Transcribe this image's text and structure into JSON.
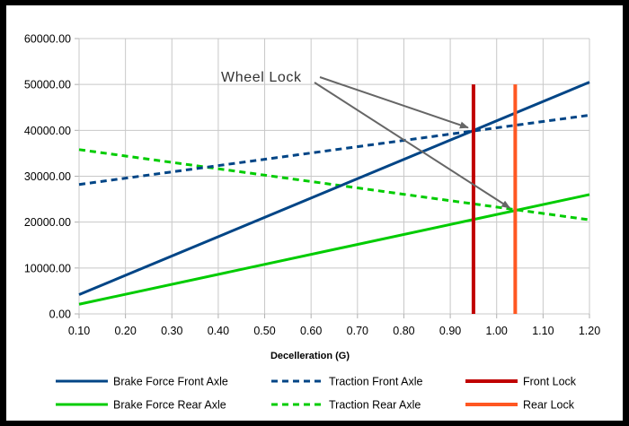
{
  "chart_data": {
    "type": "line",
    "title": "",
    "xlabel": "Decelleration (G)",
    "ylabel": "",
    "xlim": [
      0.1,
      1.2
    ],
    "ylim": [
      0,
      60000
    ],
    "x_ticks": [
      "0.10",
      "0.20",
      "0.30",
      "0.40",
      "0.50",
      "0.60",
      "0.70",
      "0.80",
      "0.90",
      "1.00",
      "1.10",
      "1.20"
    ],
    "y_ticks": [
      "0.00",
      "10000.00",
      "20000.00",
      "30000.00",
      "40000.00",
      "50000.00",
      "60000.00"
    ],
    "grid": true,
    "legend_position": "bottom",
    "series": [
      {
        "name": "Brake Force Front Axle",
        "color": "#004586",
        "style": "solid",
        "x": [
          0.1,
          1.2
        ],
        "y": [
          4200,
          50500
        ]
      },
      {
        "name": "Traction Front Axle",
        "color": "#004586",
        "style": "dashed",
        "x": [
          0.1,
          1.2
        ],
        "y": [
          28200,
          43300
        ]
      },
      {
        "name": "Front Lock",
        "color": "#c00000",
        "style": "vertical",
        "x": [
          0.95,
          0.95
        ],
        "y": [
          0,
          50000
        ]
      },
      {
        "name": "Brake Force Rear Axle",
        "color": "#00cc00",
        "style": "solid",
        "x": [
          0.1,
          1.2
        ],
        "y": [
          2100,
          26000
        ]
      },
      {
        "name": "Traction Rear Axle",
        "color": "#00cc00",
        "style": "dashed",
        "x": [
          0.1,
          1.2
        ],
        "y": [
          35800,
          20500
        ]
      },
      {
        "name": "Rear Lock",
        "color": "#ff5722",
        "style": "vertical",
        "x": [
          1.04,
          1.04
        ],
        "y": [
          0,
          50000
        ]
      }
    ],
    "annotation": {
      "text": "Wheel Lock",
      "arrows_to": [
        {
          "x": 0.95,
          "y": 40000
        },
        {
          "x": 1.04,
          "y": 22500
        }
      ]
    }
  }
}
